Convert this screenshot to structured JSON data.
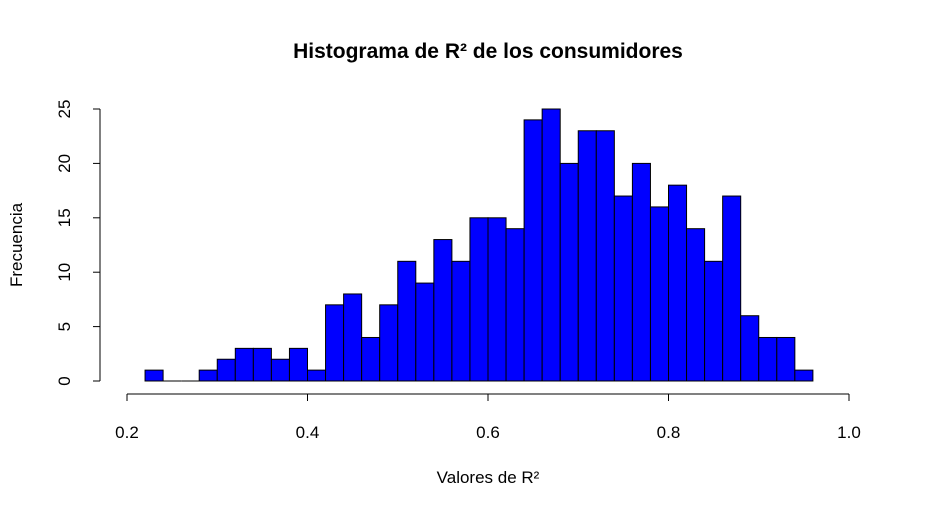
{
  "chart_data": {
    "type": "bar",
    "title": "Histograma de R² de los consumidores",
    "xlabel": "Valores de R²",
    "ylabel": "Frecuencia",
    "bin_width": 0.02,
    "x_bin_starts": [
      0.22,
      0.24,
      0.26,
      0.28,
      0.3,
      0.32,
      0.34,
      0.36,
      0.38,
      0.4,
      0.42,
      0.44,
      0.46,
      0.48,
      0.5,
      0.52,
      0.54,
      0.56,
      0.58,
      0.6,
      0.62,
      0.64,
      0.66,
      0.68,
      0.7,
      0.72,
      0.74,
      0.76,
      0.78,
      0.8,
      0.82,
      0.84,
      0.86,
      0.88,
      0.9,
      0.92,
      0.94
    ],
    "values": [
      1,
      0,
      0,
      1,
      2,
      3,
      3,
      2,
      3,
      1,
      7,
      8,
      4,
      7,
      11,
      9,
      13,
      11,
      15,
      15,
      14,
      24,
      25,
      20,
      23,
      23,
      17,
      20,
      16,
      18,
      14,
      11,
      17,
      6,
      4,
      4,
      1
    ],
    "xlim": [
      0.2,
      1.0
    ],
    "ylim": [
      0,
      25
    ],
    "x_ticks": [
      "0.2",
      "0.4",
      "0.6",
      "0.8",
      "1.0"
    ],
    "y_ticks": [
      "0",
      "5",
      "10",
      "15",
      "20",
      "25"
    ],
    "bar_color": "#0000ff",
    "border_color": "#000000",
    "grid": false
  }
}
